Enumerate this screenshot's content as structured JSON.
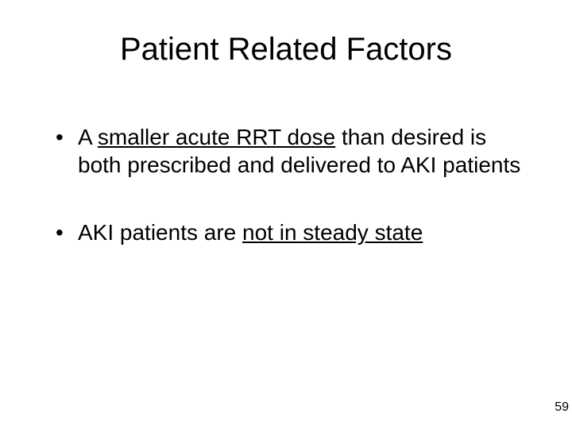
{
  "title": "Patient Related Factors",
  "bullets": [
    {
      "pre": "A ",
      "underlined": "smaller acute RRT dose",
      "post": " than desired is both prescribed and delivered to AKI patients"
    },
    {
      "pre": "AKI patients are ",
      "underlined": "not in steady state",
      "post": ""
    }
  ],
  "page_number": "59",
  "colors": {
    "background": "#ffffff",
    "text": "#000000"
  },
  "typography": {
    "title_fontsize_pt": 40,
    "body_fontsize_pt": 28,
    "pagenum_fontsize_pt": 16,
    "font_family": "Arial"
  }
}
